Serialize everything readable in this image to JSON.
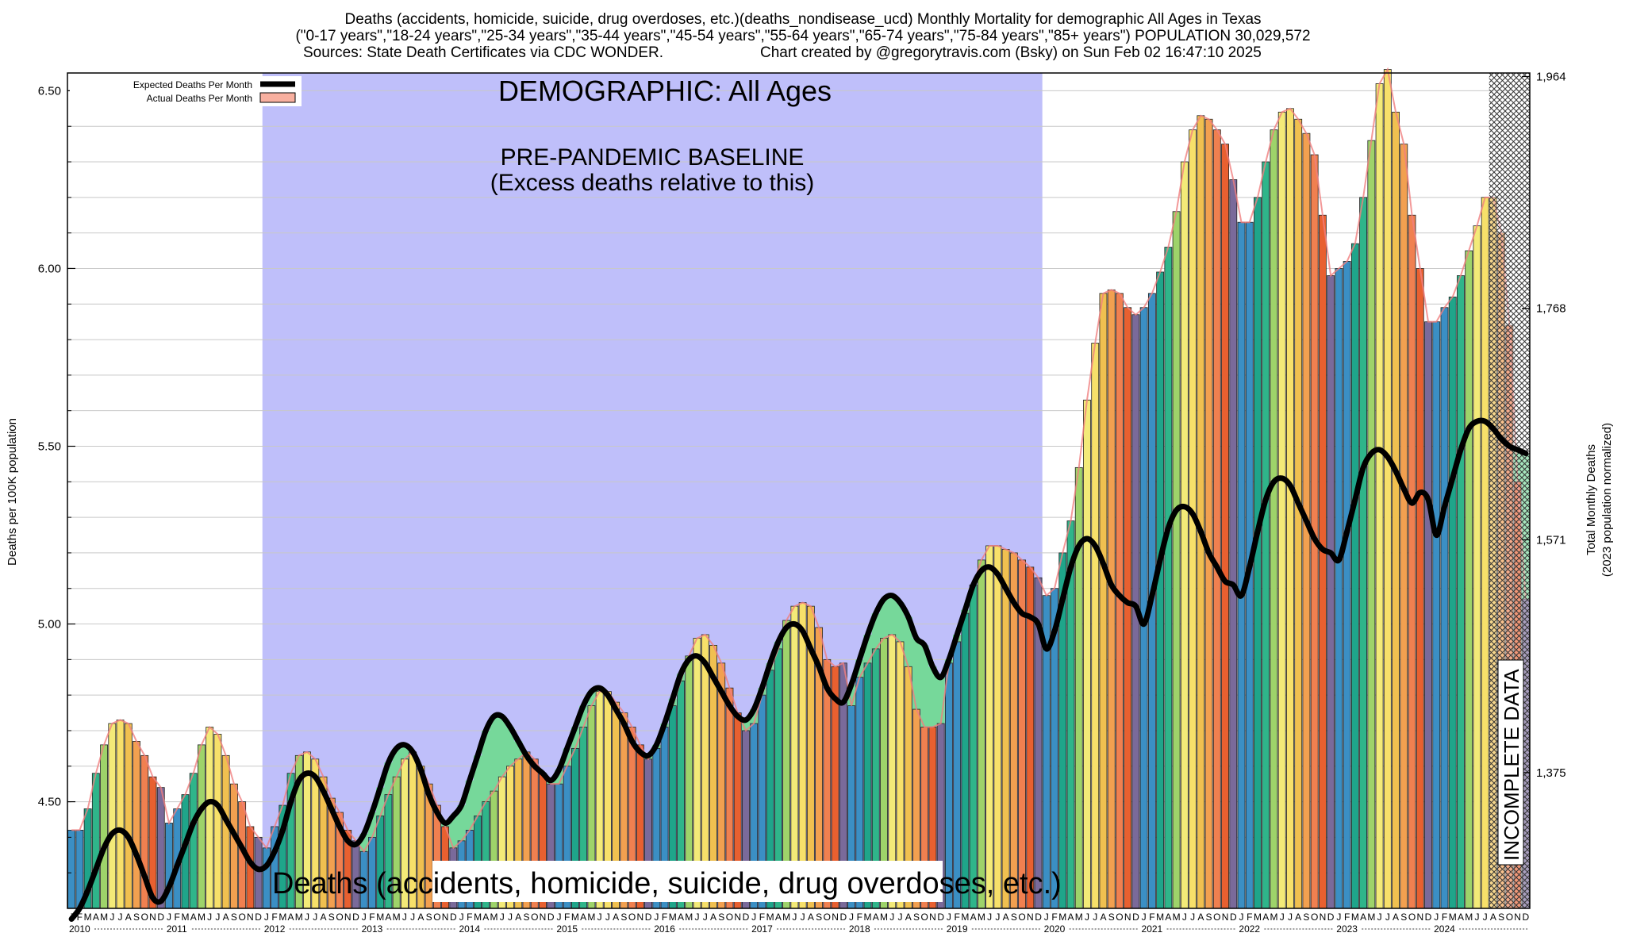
{
  "header": {
    "line1": "Deaths (accidents, homicide, suicide, drug overdoses, etc.)(deaths_nondisease_ucd) Monthly Mortality for demographic All Ages in Texas",
    "line2": "(\"0-17 years\",\"18-24 years\",\"25-34 years\",\"35-44 years\",\"45-54 years\",\"55-64 years\",\"65-74 years\",\"75-84 years\",\"85+ years\") POPULATION 30,029,572",
    "line3_left": "Sources: State Death Certificates via CDC WONDER.",
    "line3_right": "Chart created by @gregorytravis.com (Bsky) on Sun Feb 02 16:47:10 2025"
  },
  "annotations": {
    "demographic": "DEMOGRAPHIC: All Ages",
    "baseline_line1": "PRE-PANDEMIC BASELINE",
    "baseline_line2": "(Excess deaths relative to this)",
    "bottom_label": "Deaths (accidents, homicide, suicide, drug overdoses, etc.)",
    "incomplete": "INCOMPLETE DATA"
  },
  "legend": {
    "position": "top-left",
    "expected": "Expected Deaths Per Month",
    "actual": "Actual Deaths Per Month"
  },
  "colors": {
    "baseline_band": "#bfbffa",
    "expected_line": "#000000",
    "actual_outline": "#f08080",
    "excess_below": "#76d89a",
    "month_colors": [
      "#3b8fc4",
      "#3b8fc4",
      "#1fa58a",
      "#2fb58a",
      "#9ed36a",
      "#f3ea78",
      "#f7e06a",
      "#f0c050",
      "#f2a050",
      "#f08050",
      "#e86030",
      "#7a6a9a"
    ]
  },
  "chart_data": {
    "type": "bar",
    "ylabel": "Deaths per 100K population",
    "y2label_line1": "Total Monthly Deaths",
    "y2label_line2": "(2023 population normalized)",
    "ylim": [
      4.2,
      6.55
    ],
    "yticks": [
      "4.50",
      "5.00",
      "5.50",
      "6.00",
      "6.50"
    ],
    "y2ticks": [
      {
        "value": 4.582,
        "label": "1,375"
      },
      {
        "value": 5.237,
        "label": "1,571"
      },
      {
        "value": 5.888,
        "label": "1,768"
      },
      {
        "value": 6.54,
        "label": "1,964"
      }
    ],
    "month_letters": [
      "J",
      "F",
      "M",
      "A",
      "M",
      "J",
      "J",
      "A",
      "S",
      "O",
      "N",
      "D"
    ],
    "years": [
      "2010",
      "2011",
      "2012",
      "2013",
      "2014",
      "2015",
      "2016",
      "2017",
      "2018",
      "2019",
      "2020",
      "2021",
      "2022",
      "2023",
      "2024"
    ],
    "baseline_years": [
      "2012",
      "2019"
    ],
    "incomplete_from": "2024-08",
    "actual": [
      4.42,
      4.42,
      4.48,
      4.58,
      4.66,
      4.72,
      4.73,
      4.72,
      4.67,
      4.63,
      4.57,
      4.54,
      4.44,
      4.48,
      4.52,
      4.58,
      4.66,
      4.71,
      4.69,
      4.63,
      4.55,
      4.5,
      4.43,
      4.4,
      4.37,
      4.43,
      4.49,
      4.58,
      4.63,
      4.64,
      4.62,
      4.57,
      4.51,
      4.47,
      4.42,
      4.39,
      4.36,
      4.4,
      4.46,
      4.52,
      4.57,
      4.62,
      4.64,
      4.6,
      4.55,
      4.49,
      4.43,
      4.37,
      4.39,
      4.42,
      4.46,
      4.5,
      4.53,
      4.57,
      4.6,
      4.62,
      4.64,
      4.62,
      4.58,
      4.55,
      4.55,
      4.6,
      4.65,
      4.71,
      4.77,
      4.81,
      4.81,
      4.78,
      4.75,
      4.71,
      4.66,
      4.62,
      4.65,
      4.71,
      4.77,
      4.84,
      4.91,
      4.96,
      4.97,
      4.94,
      4.89,
      4.82,
      4.75,
      4.7,
      4.72,
      4.8,
      4.87,
      4.93,
      5.01,
      5.05,
      5.06,
      5.05,
      4.99,
      4.9,
      4.88,
      4.89,
      4.77,
      4.85,
      4.89,
      4.93,
      4.96,
      4.97,
      4.95,
      4.88,
      4.76,
      4.71,
      4.71,
      4.72,
      4.89,
      4.95,
      5.03,
      5.11,
      5.18,
      5.22,
      5.22,
      5.21,
      5.2,
      5.18,
      5.16,
      5.13,
      5.08,
      5.1,
      5.2,
      5.29,
      5.44,
      5.63,
      5.79,
      5.93,
      5.94,
      5.93,
      5.89,
      5.87,
      5.89,
      5.93,
      5.99,
      6.06,
      6.16,
      6.3,
      6.39,
      6.43,
      6.42,
      6.39,
      6.35,
      6.25,
      6.13,
      6.13,
      6.2,
      6.3,
      6.39,
      6.44,
      6.45,
      6.42,
      6.38,
      6.32,
      6.15,
      5.98,
      6.0,
      6.02,
      6.07,
      6.2,
      6.36,
      6.52,
      6.56,
      6.44,
      6.35,
      6.15,
      6.0,
      5.85,
      5.85,
      5.89,
      5.92,
      5.98,
      6.05,
      6.12,
      6.2,
      6.2,
      6.1,
      5.84,
      5.4,
      5.07
    ],
    "expected": [
      4.17,
      4.2,
      4.25,
      4.31,
      4.37,
      4.41,
      4.42,
      4.4,
      4.35,
      4.29,
      4.23,
      4.22,
      4.26,
      4.32,
      4.38,
      4.44,
      4.48,
      4.5,
      4.49,
      4.45,
      4.41,
      4.37,
      4.33,
      4.31,
      4.32,
      4.36,
      4.42,
      4.5,
      4.56,
      4.58,
      4.57,
      4.53,
      4.48,
      4.43,
      4.39,
      4.38,
      4.41,
      4.47,
      4.54,
      4.61,
      4.65,
      4.66,
      4.64,
      4.59,
      4.52,
      4.47,
      4.44,
      4.46,
      4.49,
      4.56,
      4.63,
      4.7,
      4.74,
      4.74,
      4.71,
      4.67,
      4.63,
      4.6,
      4.58,
      4.56,
      4.59,
      4.65,
      4.71,
      4.77,
      4.81,
      4.82,
      4.8,
      4.76,
      4.72,
      4.67,
      4.64,
      4.63,
      4.66,
      4.72,
      4.79,
      4.86,
      4.9,
      4.91,
      4.89,
      4.85,
      4.81,
      4.77,
      4.74,
      4.73,
      4.76,
      4.82,
      4.89,
      4.95,
      4.99,
      5.0,
      4.98,
      4.93,
      4.88,
      4.82,
      4.79,
      4.78,
      4.83,
      4.9,
      4.97,
      5.03,
      5.07,
      5.08,
      5.06,
      5.02,
      4.96,
      4.94,
      4.88,
      4.85,
      4.9,
      4.97,
      5.04,
      5.11,
      5.15,
      5.16,
      5.14,
      5.1,
      5.06,
      5.03,
      5.02,
      5.0,
      4.93,
      4.98,
      5.07,
      5.16,
      5.22,
      5.24,
      5.22,
      5.17,
      5.11,
      5.08,
      5.06,
      5.05,
      5.0,
      5.08,
      5.18,
      5.27,
      5.32,
      5.33,
      5.31,
      5.26,
      5.2,
      5.16,
      5.12,
      5.11,
      5.08,
      5.16,
      5.26,
      5.35,
      5.4,
      5.41,
      5.39,
      5.34,
      5.29,
      5.24,
      5.21,
      5.2,
      5.18,
      5.26,
      5.35,
      5.44,
      5.48,
      5.49,
      5.47,
      5.43,
      5.38,
      5.34,
      5.37,
      5.35,
      5.25,
      5.33,
      5.41,
      5.49,
      5.55,
      5.57,
      5.57,
      5.55,
      5.52,
      5.5,
      5.49,
      5.48
    ]
  }
}
